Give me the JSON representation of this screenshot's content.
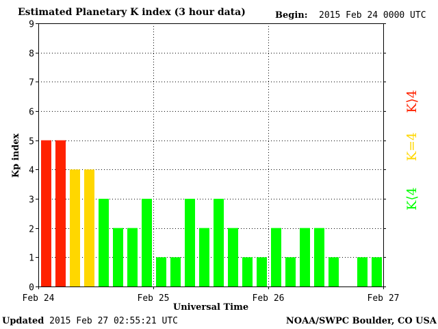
{
  "header": {
    "title": "Estimated Planetary K index (3 hour data)",
    "begin_label": "Begin:",
    "begin_value": "2015 Feb 24 0000 UTC"
  },
  "footer": {
    "updated_label": "Updated",
    "updated_value": "2015 Feb 27 02:55:21 UTC",
    "credit": "NOAA/SWPC Boulder, CO USA"
  },
  "colors": {
    "low": "#00ff00",
    "equal": "#ffd700",
    "high": "#ff2200"
  },
  "legend": [
    {
      "label": "K⟨4",
      "color": "#00ff00"
    },
    {
      "label": "K=4",
      "color": "#ffd700"
    },
    {
      "label": "K⟩4",
      "color": "#ff2200"
    }
  ],
  "chart_data": {
    "type": "bar",
    "xlabel": "Universal Time",
    "ylabel": "Kp index",
    "ylim": [
      0,
      9
    ],
    "yticks": [
      0,
      1,
      2,
      3,
      4,
      5,
      6,
      7,
      8,
      9
    ],
    "xticks": [
      "Feb 24",
      "Feb 25",
      "Feb 26",
      "Feb 27"
    ],
    "interval_hours": 3,
    "grid": true,
    "values": [
      5,
      5,
      4,
      4,
      3,
      2,
      2,
      3,
      1,
      1,
      3,
      2,
      3,
      2,
      1,
      1,
      2,
      1,
      2,
      2,
      1,
      0,
      1,
      1
    ]
  }
}
